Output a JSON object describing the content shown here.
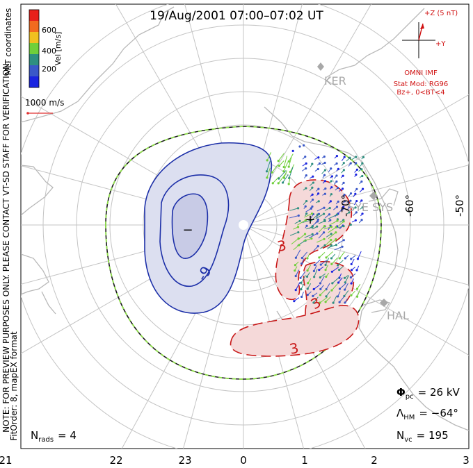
{
  "title": "19/Aug/2001 07:00–07:02 UT",
  "side_notes": {
    "coords": "MLT coordinates",
    "preview": "NOTE: FOR PREVIEW PURPOSES ONLY. PLEASE CONTACT VT-SD STAFF FOR VERIFICATION.",
    "fit": "FitOrder: 8, mapEX format"
  },
  "colorbar": {
    "label": "Vel [m/s]",
    "ticks": [
      "600",
      "400",
      "200"
    ],
    "colors": [
      "#e8201a",
      "#f26a1e",
      "#f0c020",
      "#6fcf3a",
      "#2e8f80",
      "#3a58c8",
      "#1a24e0"
    ]
  },
  "scale_vector": {
    "label": "1000 m/s",
    "color": "#e03030"
  },
  "imf": {
    "z_label": "+Z (5 nT)",
    "y_label": "+Y",
    "source": "OMNI IMF",
    "model": "Stat Mod: RG96",
    "condition": "Bz+, 0<BT<4",
    "color": "#d01010"
  },
  "stations": [
    {
      "name": "KER",
      "color": "#a8a8a8"
    },
    {
      "name": "SYE SYS",
      "color": "#a8a8a8"
    },
    {
      "name": "HAL",
      "color": "#a8a8a8"
    }
  ],
  "lat_labels": [
    "-70°",
    "-60°",
    "-50°"
  ],
  "contours": {
    "negative_label": "-9",
    "positive_labels": [
      "3",
      "3",
      "3"
    ],
    "neg_color": "#1c2fa8",
    "pos_color": "#c81818",
    "neg_fill": "#dcdff0",
    "pos_fill": "#f5d9d9"
  },
  "stats": {
    "phi_pc": "Φ",
    "phi_sub": "pc",
    "phi_value": "= 26 kV",
    "lambda": "Λ",
    "lambda_sub": "HM",
    "lambda_value": "= −64°",
    "nvc": "N",
    "nvc_sub": "vc",
    "nvc_value": "= 195",
    "nrads": "N",
    "nrads_sub": "rads",
    "nrads_value": "= 4"
  },
  "mlt_labels": [
    "21",
    "22",
    "23",
    "0",
    "1",
    "2",
    "3"
  ]
}
